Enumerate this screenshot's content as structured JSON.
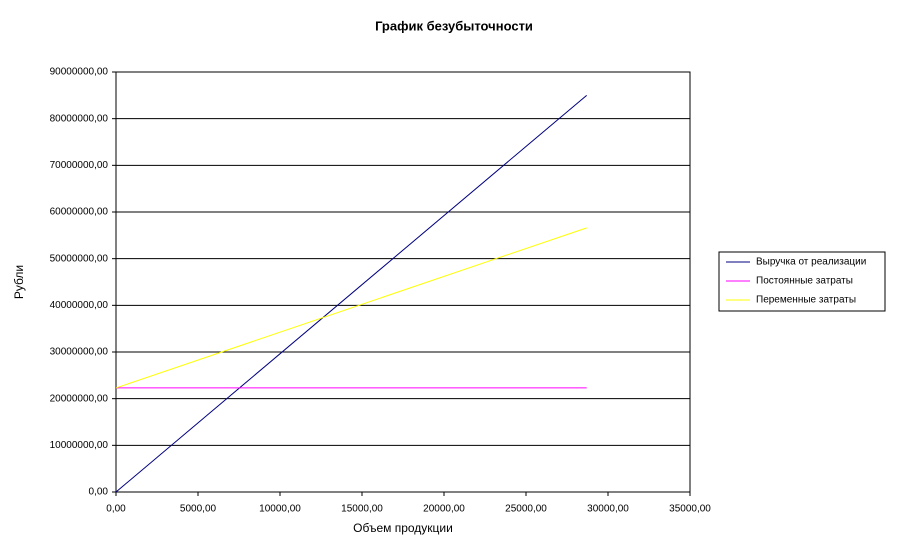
{
  "chart_data": {
    "type": "line",
    "title": "График безубыточности",
    "x_label": "Объем продукции",
    "y_label": "Рубли",
    "x": [
      0,
      28700
    ],
    "series": [
      {
        "name": "Выручка от реализации",
        "color": "#000080",
        "values": [
          0,
          85000000
        ]
      },
      {
        "name": "Постоянные затраты",
        "color": "#ff00ff",
        "values": [
          22300000,
          22300000
        ]
      },
      {
        "name": "Переменные затраты",
        "color": "#ffff00",
        "values": [
          22300000,
          56600000
        ]
      }
    ],
    "xlim": [
      0,
      35000
    ],
    "xticks": [
      {
        "value": 0,
        "label": "0,00"
      },
      {
        "value": 5000,
        "label": "5000,00"
      },
      {
        "value": 10000,
        "label": "10000,00"
      },
      {
        "value": 15000,
        "label": "15000,00"
      },
      {
        "value": 20000,
        "label": "20000,00"
      },
      {
        "value": 25000,
        "label": "25000,00"
      },
      {
        "value": 30000,
        "label": "30000,00"
      },
      {
        "value": 35000,
        "label": "35000,00"
      }
    ],
    "ylim": [
      0,
      90000000
    ],
    "yticks": [
      {
        "value": 0,
        "label": "0,00"
      },
      {
        "value": 10000000,
        "label": "10000000,00"
      },
      {
        "value": 20000000,
        "label": "20000000,00"
      },
      {
        "value": 30000000,
        "label": "30000000,00"
      },
      {
        "value": 40000000,
        "label": "40000000,00"
      },
      {
        "value": 50000000,
        "label": "50000000,00"
      },
      {
        "value": 60000000,
        "label": "60000000,00"
      },
      {
        "value": 70000000,
        "label": "70000000,00"
      },
      {
        "value": 80000000,
        "label": "80000000,00"
      },
      {
        "value": 90000000,
        "label": "90000000,00"
      }
    ],
    "grid": true,
    "legend": "right"
  }
}
